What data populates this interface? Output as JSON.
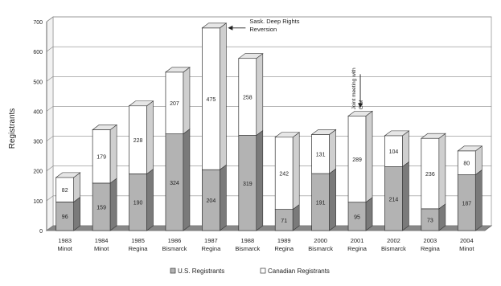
{
  "chart_data": {
    "type": "bar",
    "stacked": true,
    "three_d": true,
    "ylabel": "Registrants",
    "xlabel": "",
    "title": "",
    "ylim": [
      0,
      700
    ],
    "yticks": [
      0,
      100,
      200,
      300,
      400,
      500,
      600,
      700
    ],
    "grid": true,
    "legend": "bottom",
    "categories": [
      {
        "year": "1983",
        "city": "Minot"
      },
      {
        "year": "1984",
        "city": "Minot"
      },
      {
        "year": "1985",
        "city": "Regina"
      },
      {
        "year": "1986",
        "city": "Bismarck"
      },
      {
        "year": "1987",
        "city": "Regina"
      },
      {
        "year": "1988",
        "city": "Bismarck"
      },
      {
        "year": "1989",
        "city": "Regina"
      },
      {
        "year": "2000",
        "city": "Bismarck"
      },
      {
        "year": "2001",
        "city": "Regina"
      },
      {
        "year": "2002",
        "city": "Bismarck"
      },
      {
        "year": "2003",
        "city": "Regina"
      },
      {
        "year": "2004",
        "city": "Minot"
      }
    ],
    "series": [
      {
        "name": "U.S. Registrants",
        "color": "#b3b3b3",
        "values": [
          96,
          159,
          190,
          324,
          204,
          319,
          71,
          191,
          95,
          214,
          73,
          187
        ]
      },
      {
        "name": "Canadian Registrants",
        "color": "#ffffff",
        "values": [
          82,
          179,
          228,
          207,
          475,
          258,
          242,
          131,
          289,
          104,
          236,
          80
        ]
      }
    ],
    "annotations": [
      {
        "text_lines": [
          "Sask. Deep Rights",
          "Reversion"
        ],
        "category_index": 4,
        "style": "horizontal-arrow"
      },
      {
        "text_lines": [
          "Joint meeting with",
          "CIM"
        ],
        "category_index": 8,
        "style": "vertical-arrow"
      }
    ]
  }
}
